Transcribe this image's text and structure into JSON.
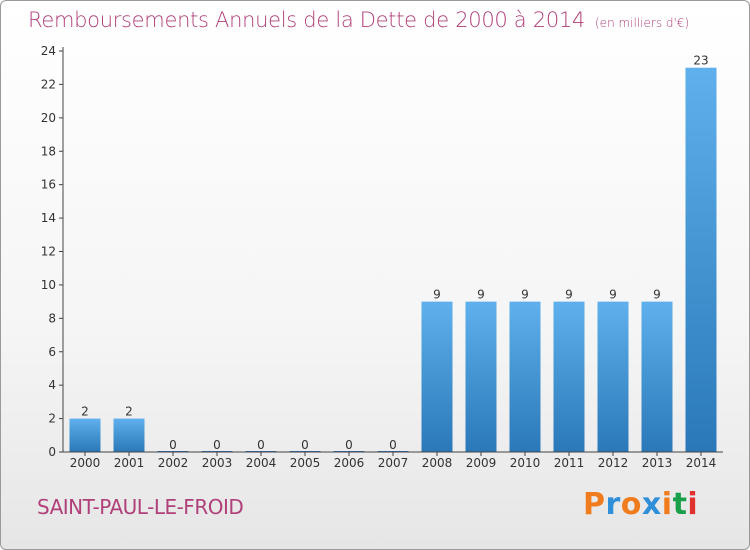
{
  "header": {
    "title": "Remboursements Annuels de la Dette de 2000 à 2014",
    "unit": "(en milliers d'€)"
  },
  "footer": {
    "commune": "SAINT-PAUL-LE-FROID",
    "logo_text": "Proxiti",
    "logo_colors": [
      "#f07c1e",
      "#2f8fd8",
      "#f07c1e",
      "#2f8fd8",
      "#f07c1e",
      "#1aa04a",
      "#e0312f"
    ]
  },
  "colors": {
    "bar_top": "#5fb0ec",
    "bar_bottom": "#2a78b8",
    "title": "#b0407a"
  },
  "chart_data": {
    "type": "bar",
    "title": "Remboursements Annuels de la Dette de 2000 à 2014",
    "xlabel": "",
    "ylabel": "",
    "categories": [
      "2000",
      "2001",
      "2002",
      "2003",
      "2004",
      "2005",
      "2006",
      "2007",
      "2008",
      "2009",
      "2010",
      "2011",
      "2012",
      "2013",
      "2014"
    ],
    "values": [
      2,
      2,
      0,
      0,
      0,
      0,
      0,
      0,
      9,
      9,
      9,
      9,
      9,
      9,
      23
    ],
    "data_labels": [
      "2",
      "2",
      "0",
      "0",
      "0",
      "0",
      "0",
      "0",
      "9",
      "9",
      "9",
      "9",
      "9",
      "9",
      "23"
    ],
    "ylim": [
      0,
      24
    ],
    "yticks": [
      "0",
      "2",
      "4",
      "6",
      "8",
      "10",
      "12",
      "14",
      "16",
      "18",
      "20",
      "22",
      "24"
    ],
    "grid": false,
    "legend": "none"
  }
}
